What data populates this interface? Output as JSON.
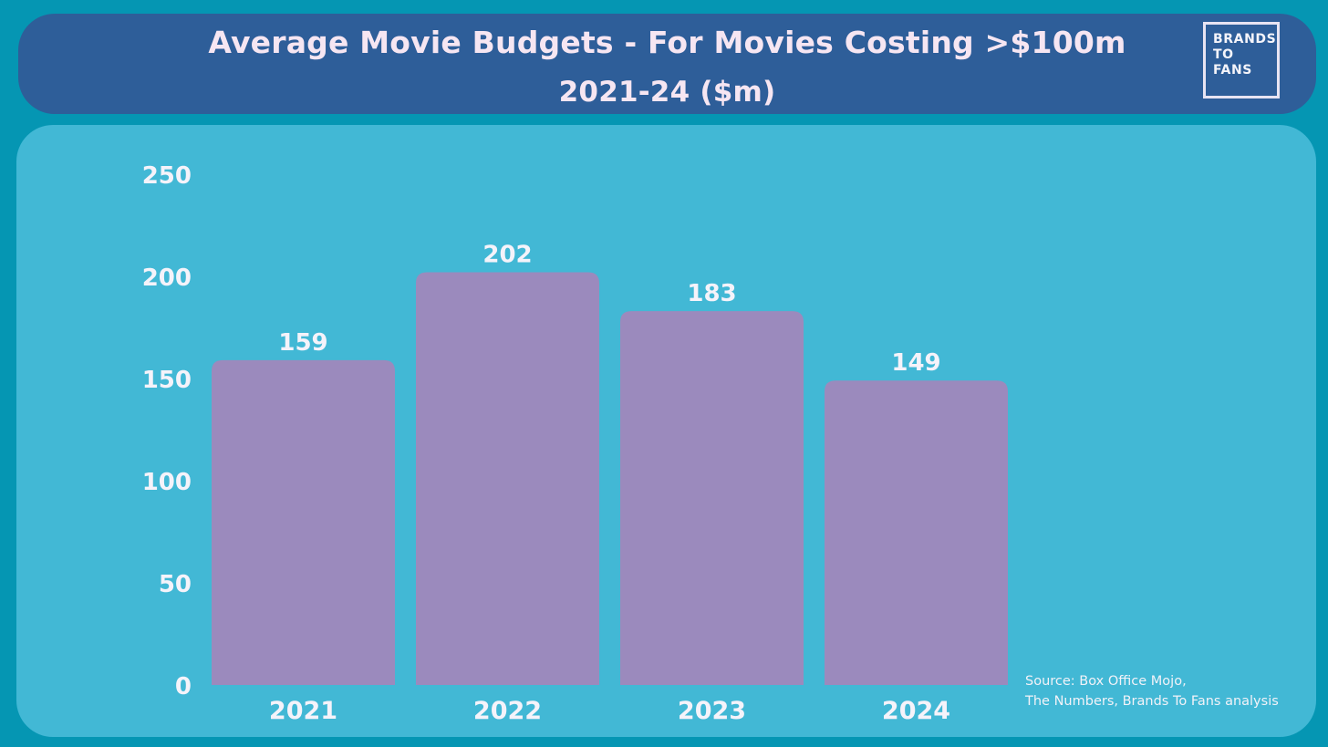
{
  "header": {
    "title_line1": "Average Movie Budgets - For Movies Costing >$100m",
    "title_line2": "2021-24 ($m)"
  },
  "logo": {
    "line1": "BRANDS",
    "line2": "TO",
    "line3": "FANS"
  },
  "source": {
    "line1": "Source: Box Office Mojo,",
    "line2": "The Numbers, Brands To Fans analysis"
  },
  "colors": {
    "background": "#0596B3",
    "header": "#2E5E99",
    "panel": "#42B8D5",
    "bar": "#9B8ABD",
    "text": "#F5F3FA"
  },
  "chart_data": {
    "type": "bar",
    "categories": [
      "2021",
      "2022",
      "2023",
      "2024"
    ],
    "values": [
      159,
      202,
      183,
      149
    ],
    "value_labels": [
      "159",
      "202",
      "183",
      "149"
    ],
    "ylim": [
      0,
      250
    ],
    "yticks": [
      "0",
      "50",
      "100",
      "150",
      "200",
      "250"
    ],
    "grid": false,
    "legend": "none"
  }
}
